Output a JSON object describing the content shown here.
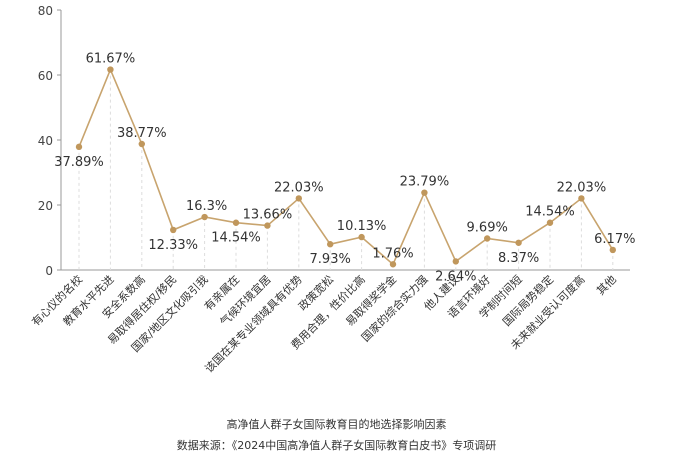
{
  "chart_data": {
    "type": "line",
    "categories": [
      "有心仪的名校",
      "教育水平先进",
      "安全系数高",
      "易取得居住权/移民",
      "国家/地区文化吸引我",
      "有亲属在",
      "气候环境宜居",
      "该国在某专业领域具有优势",
      "政策宽松",
      "费用合理，性价比高",
      "易取得奖学金",
      "国家的综合实力强",
      "他人建议",
      "语言环境好",
      "学制时间短",
      "国际局势稳定",
      "未来就业受认可度高",
      "其他"
    ],
    "values": [
      37.89,
      61.67,
      38.77,
      12.33,
      16.3,
      14.54,
      13.66,
      22.03,
      7.93,
      10.13,
      1.76,
      23.79,
      2.64,
      9.69,
      8.37,
      14.54,
      22.03,
      6.17
    ],
    "data_labels": [
      "37.89%",
      "61.67%",
      "38.77%",
      "12.33%",
      "16.3%",
      "14.54%",
      "13.66%",
      "22.03%",
      "7.93%",
      "10.13%",
      "1.76%",
      "23.79%",
      "2.64%",
      "9.69%",
      "8.37%",
      "14.54%",
      "22.03%",
      "6.17%"
    ],
    "y_ticks": [
      "0",
      "20",
      "40",
      "60",
      "80"
    ],
    "ylim": [
      0,
      80
    ],
    "grid": false,
    "line_color": "#c8a46e",
    "marker_color": "#c0975c",
    "title": "",
    "xlabel": "",
    "ylabel": ""
  },
  "caption": {
    "title": "高净值人群子女国际教育目的地选择影响因素",
    "source": "数据来源：《2024中国高净值人群子女国际教育白皮书》专项调研"
  }
}
